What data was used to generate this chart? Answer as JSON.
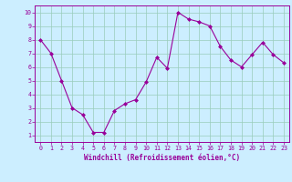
{
  "x": [
    0,
    1,
    2,
    3,
    4,
    5,
    6,
    7,
    8,
    9,
    10,
    11,
    12,
    13,
    14,
    15,
    16,
    17,
    18,
    19,
    20,
    21,
    22,
    23
  ],
  "y": [
    8,
    7,
    5,
    3,
    2.5,
    1.2,
    1.2,
    2.8,
    3.3,
    3.6,
    4.9,
    6.7,
    5.9,
    10.0,
    9.5,
    9.3,
    9.0,
    7.5,
    6.5,
    6.0,
    6.9,
    7.8,
    6.9,
    6.3
  ],
  "line_color": "#990099",
  "marker": "D",
  "marker_size": 2.0,
  "bg_color": "#cceeff",
  "grid_color": "#99ccbb",
  "xlabel": "Windchill (Refroidissement éolien,°C)",
  "xlim": [
    -0.5,
    23.5
  ],
  "ylim": [
    0.5,
    10.5
  ],
  "xticks": [
    0,
    1,
    2,
    3,
    4,
    5,
    6,
    7,
    8,
    9,
    10,
    11,
    12,
    13,
    14,
    15,
    16,
    17,
    18,
    19,
    20,
    21,
    22,
    23
  ],
  "yticks": [
    1,
    2,
    3,
    4,
    5,
    6,
    7,
    8,
    9,
    10
  ],
  "tick_color": "#990099",
  "label_color": "#990099",
  "spine_color": "#990099",
  "axis_bg": "#cceeff"
}
